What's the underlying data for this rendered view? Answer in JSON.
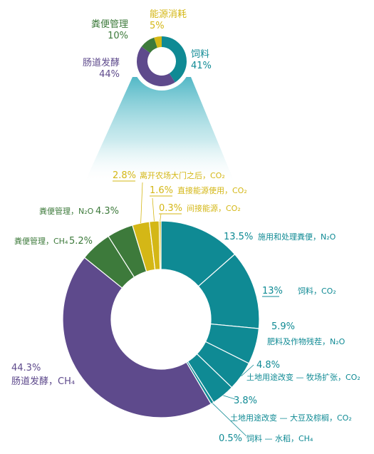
{
  "colors": {
    "teal": "#0f8a94",
    "purple": "#5e4a8c",
    "green": "#3d7a3b",
    "yellow": "#d4b716",
    "cone": "#3fb0c0"
  },
  "chart_data": [
    {
      "type": "pie",
      "subtype": "donut",
      "title": "",
      "slices": [
        {
          "label": "饲料",
          "value": 41,
          "value_label": "41%",
          "color": "#0f8a94"
        },
        {
          "label": "肠道发酵",
          "value": 44,
          "value_label": "44%",
          "color": "#5e4a8c"
        },
        {
          "label": "粪便管理",
          "value": 10,
          "value_label": "10%",
          "color": "#3d7a3b"
        },
        {
          "label": "能源消耗",
          "value": 5,
          "value_label": "5%",
          "color": "#d4b716"
        }
      ]
    },
    {
      "type": "pie",
      "subtype": "donut",
      "title": "",
      "slices": [
        {
          "label": "施用和处理粪便",
          "gas": "N₂O",
          "value": 13.5,
          "value_label": "13.5%",
          "color": "#0f8a94"
        },
        {
          "label": "饲料",
          "gas": "CO₂",
          "value": 13,
          "value_label": "13%",
          "color": "#0f8a94"
        },
        {
          "label": "肥料及作物残茬",
          "gas": "N₂O",
          "value": 5.9,
          "value_label": "5.9%",
          "color": "#0f8a94"
        },
        {
          "label": "土地用途改变 — 牧场扩张",
          "gas": "CO₂",
          "value": 4.8,
          "value_label": "4.8%",
          "color": "#0f8a94"
        },
        {
          "label": "土地用途改变 — 大豆及棕榈",
          "gas": "CO₂",
          "value": 3.8,
          "value_label": "3.8%",
          "color": "#0f8a94"
        },
        {
          "label": "饲料 — 水稻",
          "gas": "CH₄",
          "value": 0.5,
          "value_label": "0.5%",
          "color": "#0f8a94"
        },
        {
          "label": "肠道发酵",
          "gas": "CH₄",
          "value": 44.3,
          "value_label": "44.3%",
          "color": "#5e4a8c"
        },
        {
          "label": "粪便管理",
          "gas": "CH₄",
          "value": 5.2,
          "value_label": "5.2%",
          "color": "#3d7a3b"
        },
        {
          "label": "粪便管理",
          "gas": "N₂O",
          "value": 4.3,
          "value_label": "4.3%",
          "color": "#3d7a3b"
        },
        {
          "label": "离开农场大门之后",
          "gas": "CO₂",
          "value": 2.8,
          "value_label": "2.8%",
          "color": "#d4b716"
        },
        {
          "label": "直接能源使用",
          "gas": "CO₂",
          "value": 1.6,
          "value_label": "1.6%",
          "color": "#d4b716"
        },
        {
          "label": "间接能源",
          "gas": "CO₂",
          "value": 0.3,
          "value_label": "0.3%",
          "color": "#d4b716"
        }
      ]
    }
  ]
}
